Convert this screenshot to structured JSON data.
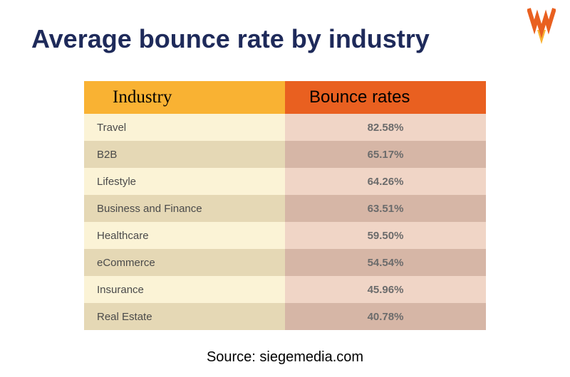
{
  "title": {
    "text": "Average bounce rate by industry",
    "color": "#1e2a5a",
    "fontsize": 36,
    "fontweight": 700
  },
  "logo": {
    "letter": "W",
    "primary_color": "#e96020",
    "secondary_color": "#f9b233"
  },
  "table": {
    "type": "table",
    "columns": [
      "Industry",
      "Bounce rates"
    ],
    "header_bg": [
      "#f9b233",
      "#e96020"
    ],
    "header_text_color": "#000000",
    "header_fontsize": 25,
    "col_widths": [
      "50%",
      "50%"
    ],
    "industry_col_bg_odd": "#fbf3d6",
    "industry_col_bg_even": "#e5d8b5",
    "rate_col_bg_odd": "#f0d5c6",
    "rate_col_bg_even": "#d6b6a6",
    "industry_text_color": "#4a4a4a",
    "rate_text_color": "#6b6b6b",
    "cell_fontsize": 15,
    "rows": [
      {
        "industry": "Travel",
        "rate": "82.58%"
      },
      {
        "industry": "B2B",
        "rate": "65.17%"
      },
      {
        "industry": "Lifestyle",
        "rate": "64.26%"
      },
      {
        "industry": "Business and Finance",
        "rate": "63.51%"
      },
      {
        "industry": "Healthcare",
        "rate": "59.50%"
      },
      {
        "industry": "eCommerce",
        "rate": "54.54%"
      },
      {
        "industry": "Insurance",
        "rate": "45.96%"
      },
      {
        "industry": "Real Estate",
        "rate": "40.78%"
      }
    ]
  },
  "source": {
    "text": "Source: siegemedia.com",
    "fontsize": 20,
    "color": "#000000"
  },
  "background_color": "#ffffff"
}
